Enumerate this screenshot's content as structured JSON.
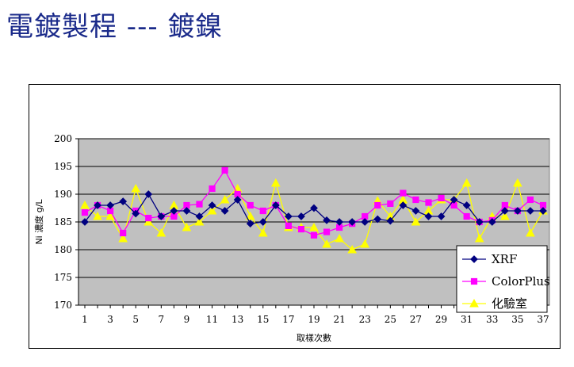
{
  "slide": {
    "title": "電鍍製程 --- 鍍鎳"
  },
  "chart_data": {
    "type": "line",
    "title": "",
    "xlabel": "取樣次數",
    "ylabel": "Ni 濃度 g/L",
    "x": [
      1,
      2,
      3,
      4,
      5,
      6,
      7,
      8,
      9,
      10,
      11,
      12,
      13,
      14,
      15,
      16,
      17,
      18,
      19,
      20,
      21,
      22,
      23,
      24,
      25,
      26,
      27,
      28,
      29,
      30,
      31,
      32,
      33,
      34,
      35,
      36,
      37
    ],
    "x_tick_labels": [
      "1",
      "3",
      "5",
      "7",
      "9",
      "11",
      "13",
      "15",
      "17",
      "19",
      "21",
      "23",
      "25",
      "27",
      "29",
      "31",
      "33",
      "35",
      "37"
    ],
    "ylim": [
      170,
      200
    ],
    "y_tick_labels": [
      "170",
      "175",
      "180",
      "185",
      "190",
      "195",
      "200"
    ],
    "grid": true,
    "legend_position": "bottom-right",
    "plot_background": "#c0c0c0",
    "series": [
      {
        "name": "XRF",
        "color": "#000080",
        "marker": "diamond",
        "values": [
          185,
          188,
          188,
          188.7,
          186.5,
          190,
          186,
          187,
          187,
          186,
          188,
          187,
          189,
          184.7,
          185,
          188,
          186,
          186,
          187.5,
          185.3,
          185,
          185,
          185,
          185.5,
          185.2,
          188,
          187,
          186,
          186,
          189,
          188,
          185,
          185,
          187,
          187,
          187,
          187
        ]
      },
      {
        "name": "ColorPlus",
        "color": "#ff00ff",
        "marker": "square",
        "values": [
          186.7,
          188,
          187,
          183,
          187,
          185.7,
          186,
          186,
          188,
          188.2,
          191,
          194.3,
          190,
          188,
          187,
          188,
          184.3,
          183.7,
          182.6,
          183.2,
          184,
          184.7,
          186,
          188,
          188.3,
          190.2,
          189,
          188.5,
          189.3,
          188,
          186,
          185,
          185.3,
          188,
          187,
          189,
          188
        ]
      },
      {
        "name": "化驗室",
        "color": "#ffff00",
        "marker": "triangle",
        "values": [
          188,
          186,
          186,
          182,
          191,
          185,
          183,
          188,
          184,
          185,
          187,
          189,
          191,
          186,
          183,
          192,
          184,
          184,
          184,
          181,
          182,
          180,
          181,
          188.8,
          186,
          189,
          185,
          187,
          189,
          189,
          192,
          182,
          186,
          186,
          192,
          183,
          187
        ]
      }
    ]
  }
}
